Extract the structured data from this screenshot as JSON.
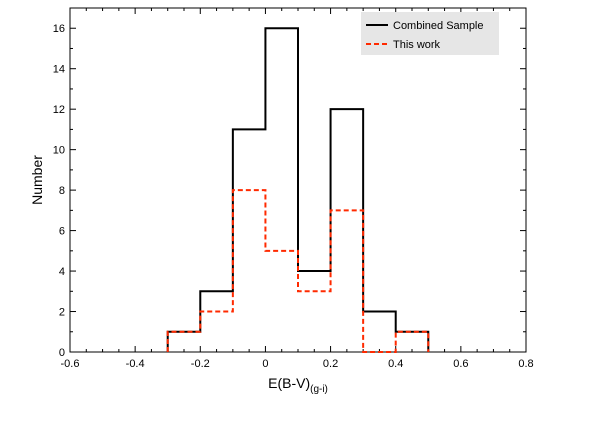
{
  "chart_data": {
    "type": "histogram",
    "title": "",
    "xlabel": "E(B-V)",
    "xlabel_subscript": "(g-i)",
    "ylabel": "Number",
    "xlim": [
      -0.6,
      0.8
    ],
    "ylim": [
      0,
      17
    ],
    "xticks": [
      -0.6,
      -0.4,
      -0.2,
      0,
      0.2,
      0.4,
      0.6,
      0.8
    ],
    "xtick_labels": [
      "-0.6",
      "-0.4",
      "-0.2",
      "0",
      "0.2",
      "0.4",
      "0.6",
      "0.8"
    ],
    "yticks": [
      0,
      2,
      4,
      6,
      8,
      10,
      12,
      14,
      16
    ],
    "ytick_labels": [
      "0",
      "2",
      "4",
      "6",
      "8",
      "10",
      "12",
      "14",
      "16"
    ],
    "bin_edges": [
      -0.3,
      -0.2,
      -0.1,
      0.0,
      0.1,
      0.2,
      0.3,
      0.4,
      0.5
    ],
    "legend_position": "top-right",
    "grid": false,
    "series": [
      {
        "name": "Combined Sample",
        "counts": [
          1,
          3,
          11,
          16,
          4,
          12,
          2,
          1
        ],
        "color": "#000000",
        "style": "solid"
      },
      {
        "name": "This work",
        "counts": [
          1,
          2,
          8,
          5,
          3,
          7,
          0,
          1
        ],
        "color": "#ff2a00",
        "style": "dashed"
      }
    ]
  }
}
